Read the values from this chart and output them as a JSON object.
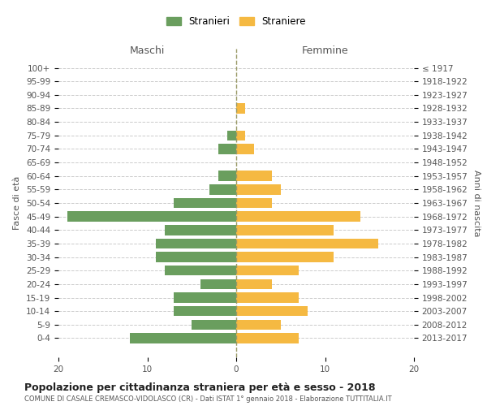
{
  "age_groups": [
    "100+",
    "95-99",
    "90-94",
    "85-89",
    "80-84",
    "75-79",
    "70-74",
    "65-69",
    "60-64",
    "55-59",
    "50-54",
    "45-49",
    "40-44",
    "35-39",
    "30-34",
    "25-29",
    "20-24",
    "15-19",
    "10-14",
    "5-9",
    "0-4"
  ],
  "birth_years": [
    "≤ 1917",
    "1918-1922",
    "1923-1927",
    "1928-1932",
    "1933-1937",
    "1938-1942",
    "1943-1947",
    "1948-1952",
    "1953-1957",
    "1958-1962",
    "1963-1967",
    "1968-1972",
    "1973-1977",
    "1978-1982",
    "1983-1987",
    "1988-1992",
    "1993-1997",
    "1998-2002",
    "2003-2007",
    "2008-2012",
    "2013-2017"
  ],
  "maschi": [
    0,
    0,
    0,
    0,
    0,
    1,
    2,
    0,
    2,
    3,
    7,
    19,
    8,
    9,
    9,
    8,
    4,
    7,
    7,
    5,
    12
  ],
  "femmine": [
    0,
    0,
    0,
    1,
    0,
    1,
    2,
    0,
    4,
    5,
    4,
    14,
    11,
    16,
    11,
    7,
    4,
    7,
    8,
    5,
    7
  ],
  "maschi_color": "#6a9e5e",
  "femmine_color": "#f5b942",
  "background_color": "#ffffff",
  "grid_color": "#cccccc",
  "title": "Popolazione per cittadinanza straniera per età e sesso - 2018",
  "subtitle": "COMUNE DI CASALE CREMASCO-VIDOLASCO (CR) - Dati ISTAT 1° gennaio 2018 - Elaborazione TUTTITALIA.IT",
  "xlabel_left": "Maschi",
  "xlabel_right": "Femmine",
  "ylabel_left": "Fasce di età",
  "ylabel_right": "Anni di nascita",
  "legend_stranieri": "Stranieri",
  "legend_straniere": "Straniere",
  "xlim": 20
}
